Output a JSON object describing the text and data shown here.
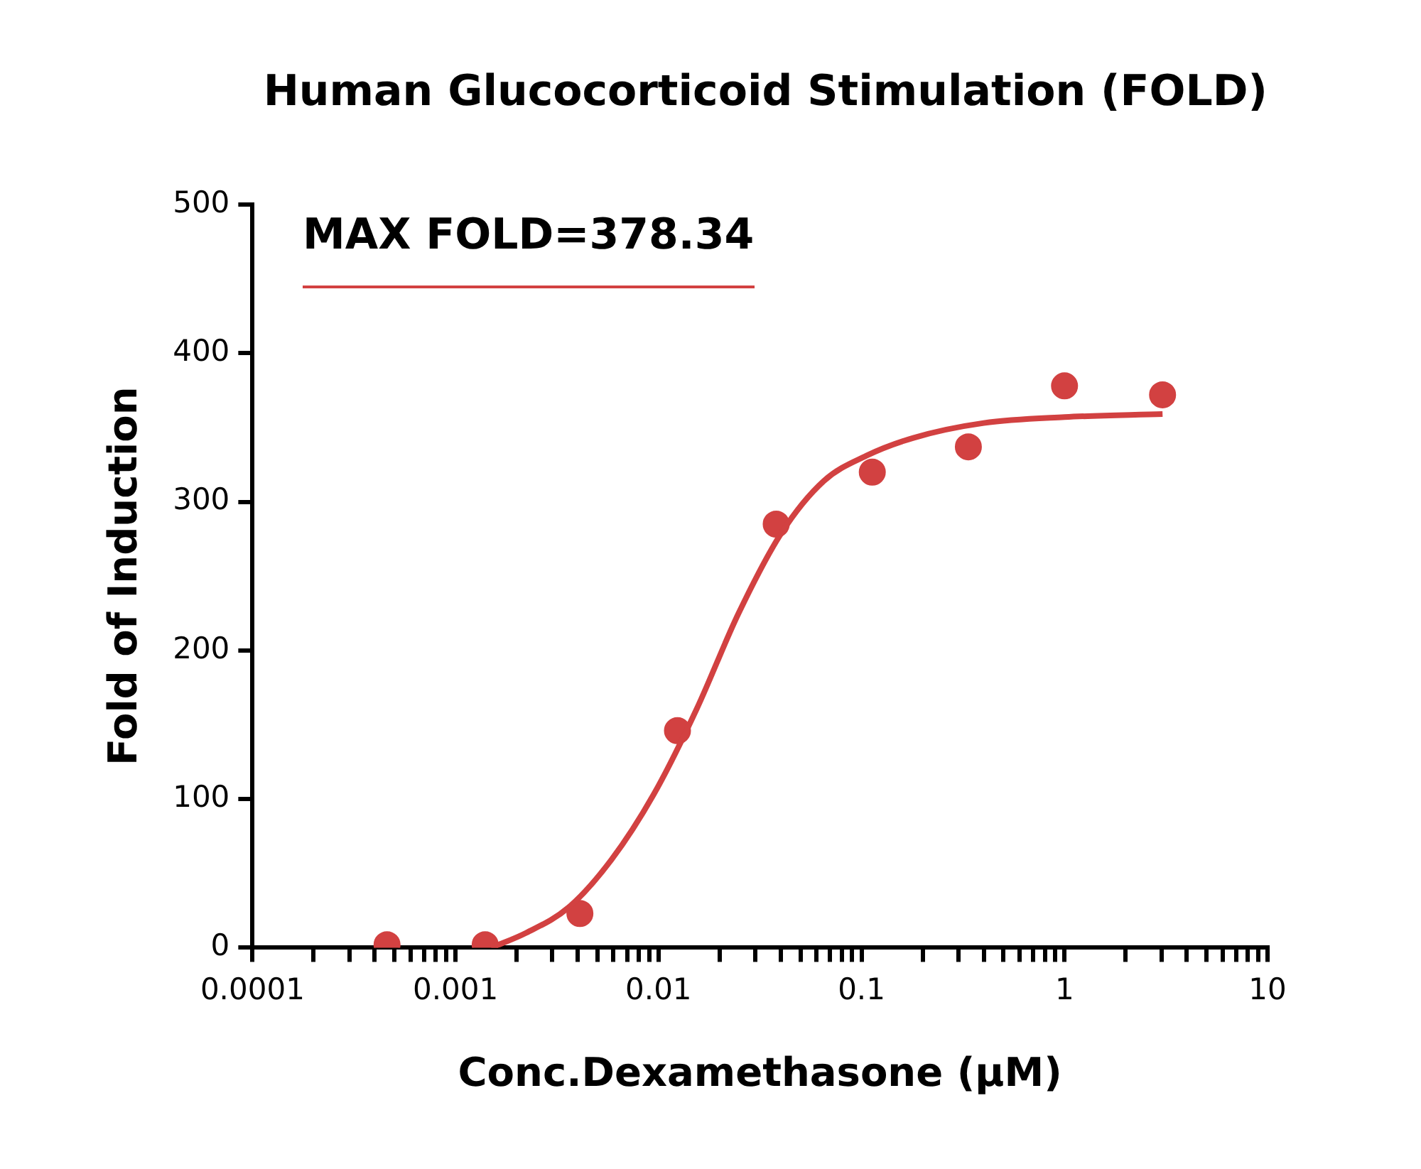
{
  "chart_data": {
    "type": "scatter",
    "title": "Human Glucocorticoid Stimulation (FOLD)",
    "xlabel": "Conc.Dexamethasone (μM)",
    "ylabel": "Fold of Induction",
    "log": "x",
    "grid": false,
    "legend": "top left",
    "xlim": [
      0.0001,
      10
    ],
    "xticks": [
      0.0001,
      {
        "value": 0.0002,
        "label": null
      },
      {
        "value": 0.0003,
        "label": null
      },
      {
        "value": 0.0004,
        "label": null
      },
      {
        "value": 0.0005,
        "label": null
      },
      {
        "value": 0.0006,
        "label": null
      },
      {
        "value": 0.0007,
        "label": null
      },
      {
        "value": 0.0008,
        "label": null
      },
      {
        "value": 0.0009,
        "label": null
      },
      0.001,
      {
        "value": 0.002,
        "label": null
      },
      {
        "value": 0.003,
        "label": null
      },
      {
        "value": 0.004,
        "label": null
      },
      {
        "value": 0.005,
        "label": null
      },
      {
        "value": 0.006,
        "label": null
      },
      {
        "value": 0.007,
        "label": null
      },
      {
        "value": 0.008,
        "label": null
      },
      {
        "value": 0.009,
        "label": null
      },
      0.01,
      {
        "value": 0.02,
        "label": null
      },
      {
        "value": 0.03,
        "label": null
      },
      {
        "value": 0.04,
        "label": null
      },
      {
        "value": 0.05,
        "label": null
      },
      {
        "value": 0.06,
        "label": null
      },
      {
        "value": 0.07,
        "label": null
      },
      {
        "value": 0.08,
        "label": null
      },
      {
        "value": 0.09,
        "label": null
      },
      0.1,
      {
        "value": 0.2,
        "label": null
      },
      {
        "value": 0.3,
        "label": null
      },
      {
        "value": 0.4,
        "label": null
      },
      {
        "value": 0.5,
        "label": null
      },
      {
        "value": 0.6,
        "label": null
      },
      {
        "value": 0.7,
        "label": null
      },
      {
        "value": 0.8,
        "label": null
      },
      {
        "value": 0.9,
        "label": null
      },
      1,
      {
        "value": 2,
        "label": null
      },
      {
        "value": 3,
        "label": null
      },
      {
        "value": 4,
        "label": null
      },
      {
        "value": 5,
        "label": null
      },
      {
        "value": 6,
        "label": null
      },
      {
        "value": 7,
        "label": null
      },
      {
        "value": 8,
        "label": null
      },
      {
        "value": 9,
        "label": null
      },
      10
    ],
    "ylim": [
      0,
      500
    ],
    "yticks": [
      0,
      100,
      200,
      300,
      400,
      500
    ],
    "series": [
      {
        "type": "scatter",
        "color": "#d24141",
        "marker": "circle",
        "x": [
          0.00046,
          0.0014,
          0.0041,
          0.0124,
          0.038,
          0.113,
          0.336,
          1.0,
          3.04
        ],
        "values": [
          2,
          2,
          23,
          146,
          285,
          320,
          337,
          378,
          372
        ]
      },
      {
        "type": "line",
        "name": "MAX FOLD=378.34",
        "color": "#d24141",
        "marker": "none",
        "line_style": "solid",
        "x": [
          0.0015,
          0.00223,
          0.0036,
          0.00585,
          0.00946,
          0.01535,
          0.0248,
          0.0403,
          0.0652,
          0.1057,
          0.18,
          0.4,
          1.0,
          3.04
        ],
        "values": [
          0,
          10,
          27,
          59,
          103,
          160,
          225,
          279,
          314,
          331,
          343,
          353,
          357,
          359
        ]
      }
    ]
  }
}
